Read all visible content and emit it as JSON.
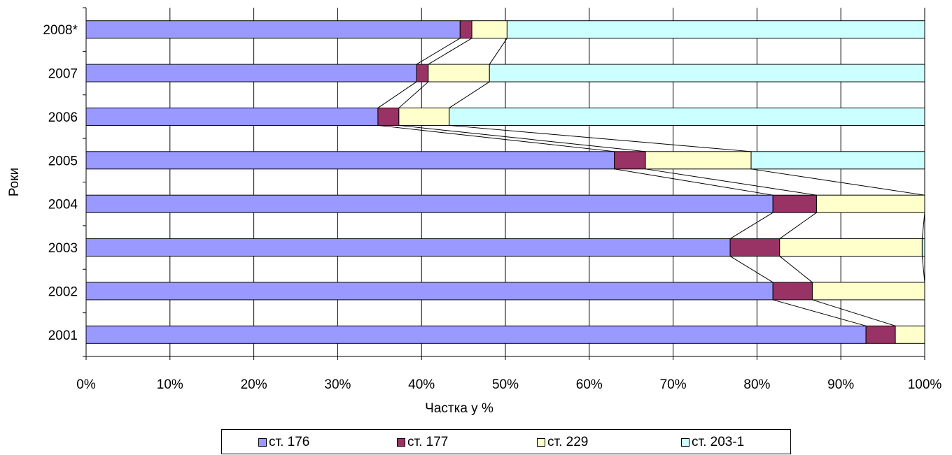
{
  "chart_data": {
    "type": "bar",
    "orientation": "horizontal",
    "stacked": "percent",
    "ylabel": "Роки",
    "xlabel": "Частка у %",
    "categories": [
      "2008*",
      "2007",
      "2006",
      "2005",
      "2004",
      "2003",
      "2002",
      "2001"
    ],
    "x_ticks": [
      "0%",
      "10%",
      "20%",
      "30%",
      "40%",
      "50%",
      "60%",
      "70%",
      "80%",
      "90%",
      "100%"
    ],
    "xlim": [
      0,
      100
    ],
    "grid": "vertical",
    "legend_position": "bottom",
    "series": [
      {
        "name": "ст. 176",
        "color": "#9999ff",
        "values": [
          44.6,
          39.4,
          34.8,
          63.0,
          81.9,
          76.8,
          81.9,
          93.0
        ]
      },
      {
        "name": "ст. 177",
        "color": "#993366",
        "values": [
          1.4,
          1.4,
          2.5,
          3.7,
          5.2,
          5.9,
          4.7,
          3.5
        ]
      },
      {
        "name": "ст. 229",
        "color": "#ffffcc",
        "values": [
          4.2,
          7.3,
          6.0,
          12.6,
          12.9,
          17.0,
          13.4,
          3.5
        ]
      },
      {
        "name": "ст. 203-1",
        "color": "#ccffff",
        "values": [
          49.8,
          51.9,
          56.7,
          20.7,
          0.0,
          0.3,
          0.0,
          0.0
        ]
      }
    ]
  }
}
